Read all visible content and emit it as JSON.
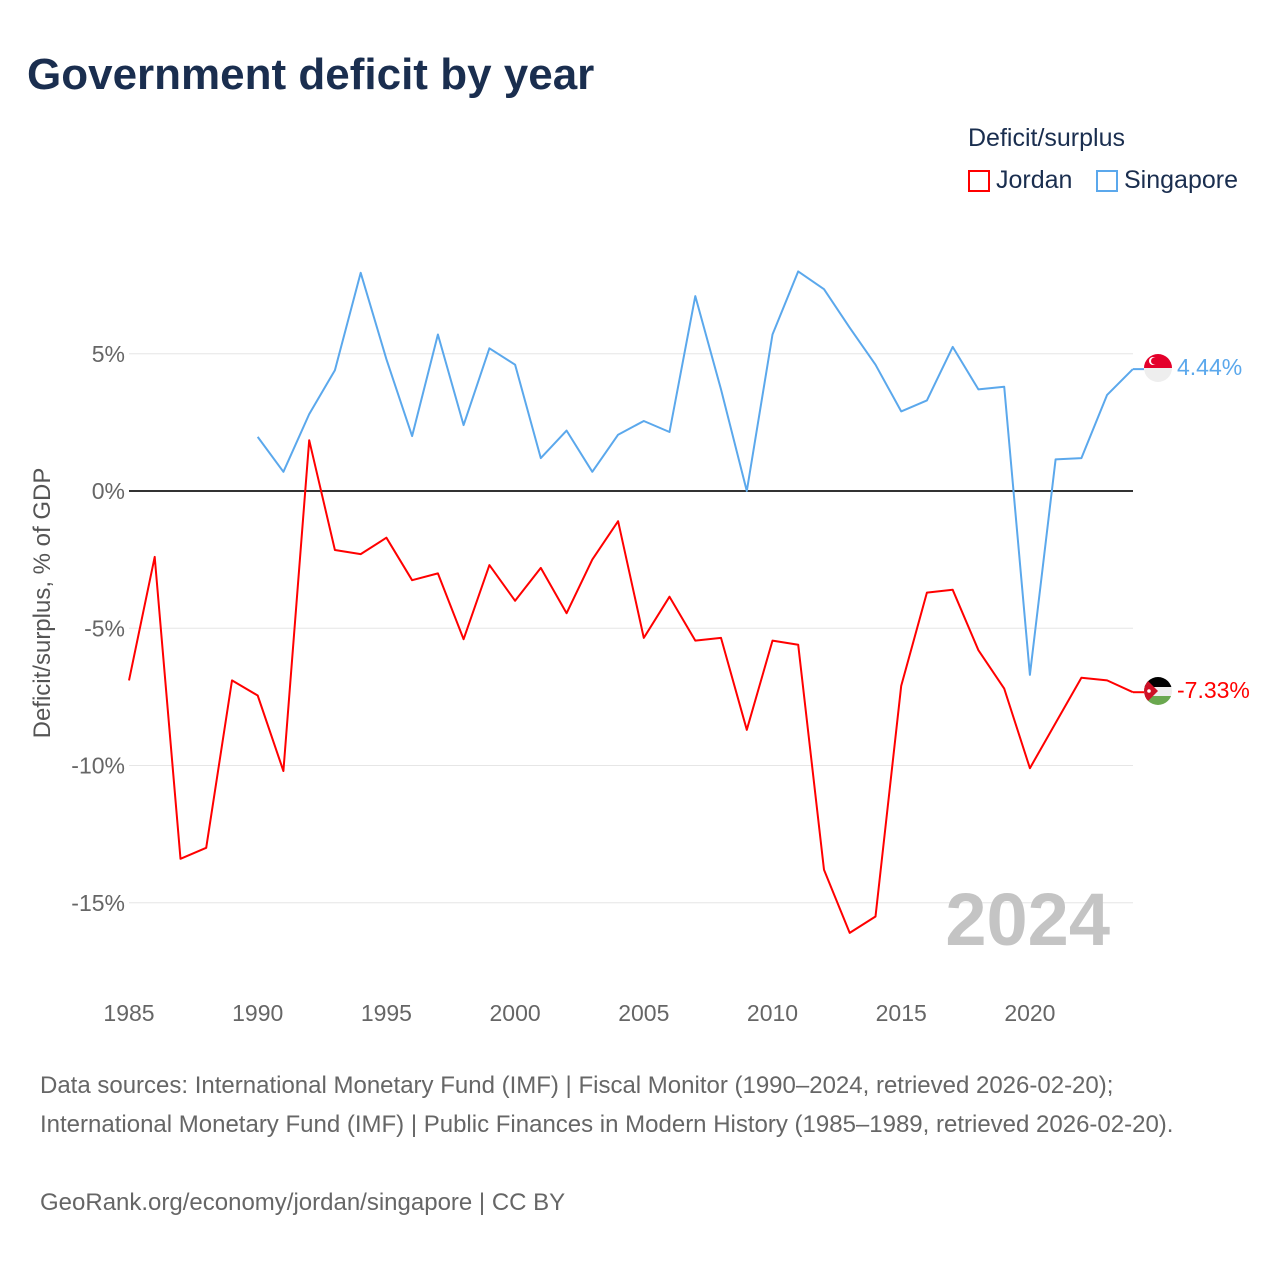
{
  "colors": {
    "jordan": "#ff0000",
    "singapore": "#5ba8ec"
  },
  "chart_data": {
    "type": "line",
    "title": "Government deficit by year",
    "ylabel": "Deficit/surplus, % of GDP",
    "xlabel": "",
    "ylim": [
      -17,
      9
    ],
    "xlim": [
      1985,
      2024
    ],
    "yticks": [
      5,
      0,
      -5,
      -10,
      -15
    ],
    "ytick_labels": [
      "5%",
      "0%",
      "-5%",
      "-10%",
      "-15%"
    ],
    "xticks": [
      1985,
      1990,
      1995,
      2000,
      2005,
      2010,
      2015,
      2020
    ],
    "xtick_labels": [
      "1985",
      "1990",
      "1995",
      "2000",
      "2005",
      "2010",
      "2015",
      "2020"
    ],
    "legend_title": "Deficit/surplus",
    "legend_position": "top-right",
    "watermark_year": "2024",
    "series": [
      {
        "name": "Jordan",
        "start_year": 1985,
        "end_label": "-7.33%",
        "values": [
          -6.9,
          -2.4,
          -13.4,
          -13.0,
          -6.9,
          -7.45,
          -10.2,
          1.85,
          -2.15,
          -2.3,
          -1.7,
          -3.25,
          -3.0,
          -5.4,
          -2.7,
          -4.0,
          -2.8,
          -4.45,
          -2.5,
          -1.1,
          -5.35,
          -3.85,
          -5.45,
          -5.35,
          -8.7,
          -5.45,
          -5.6,
          -13.8,
          -16.1,
          -15.5,
          -7.1,
          -3.7,
          -3.6,
          -5.8,
          -7.2,
          -10.1,
          -8.45,
          -6.8,
          -6.9,
          -7.33
        ]
      },
      {
        "name": "Singapore",
        "start_year": 1990,
        "end_label": "4.44%",
        "values": [
          1.97,
          0.7,
          2.8,
          4.4,
          7.95,
          4.8,
          2.0,
          5.7,
          2.4,
          5.2,
          4.6,
          1.2,
          2.2,
          0.7,
          2.05,
          2.55,
          2.15,
          7.1,
          3.7,
          0.0,
          5.7,
          8.0,
          7.35,
          5.95,
          4.6,
          2.9,
          3.3,
          5.25,
          3.7,
          3.8,
          -6.7,
          1.15,
          1.2,
          3.5,
          4.44
        ]
      }
    ]
  },
  "footer": {
    "sources": "Data sources: International Monetary Fund (IMF) | Fiscal Monitor (1990–2024, retrieved 2026-02-20); International Monetary Fund (IMF) | Public Finances in Modern History (1985–1989, retrieved 2026-02-20).",
    "credit": "GeoRank.org/economy/jordan/singapore | CC BY"
  }
}
